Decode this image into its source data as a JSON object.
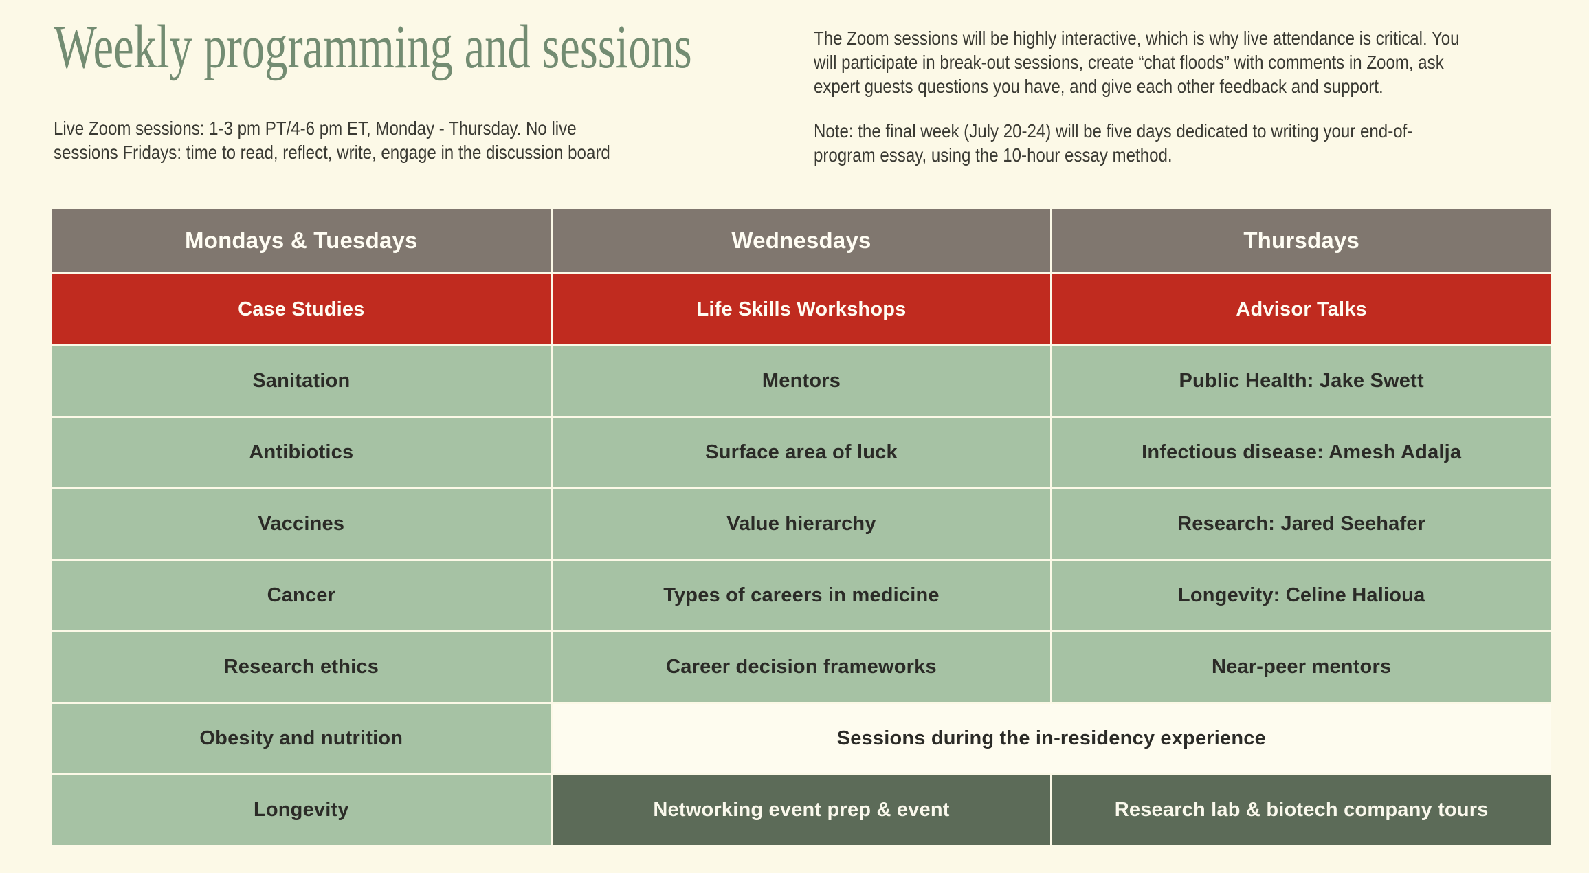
{
  "header": {
    "title": "Weekly programming and sessions",
    "left_paragraph": "Live Zoom sessions: 1-3 pm PT/4-6 pm ET, Monday - Thursday. No live\nsessions Fridays: time to read, reflect, write, engage in the discussion board",
    "right_paragraph_1": "The Zoom sessions will be highly interactive, which is why live attendance is critical. You\nwill participate in break-out sessions, create “chat floods” with comments in Zoom, ask\nexpert guests questions you have, and give each other feedback and support.",
    "right_paragraph_2": "Note: the final week (July 20-24) will be five days dedicated to writing your end-of-\nprogram essay, using the 10-hour essay method."
  },
  "colors": {
    "page_background": "#FCF9E7",
    "title_green": "#738C72",
    "header_row_gray": "#80776F",
    "category_row_red": "#C02B1F",
    "topic_cell_green": "#A6C2A4",
    "residency_row_dark_green": "#5C6B58",
    "table_light_text": "#FFFDF3",
    "table_dark_text": "#2B2B27"
  },
  "table": {
    "header_row": [
      "Mondays & Tuesdays",
      "Wednesdays",
      "Thursdays"
    ],
    "category_row": [
      "Case Studies",
      "Life Skills Workshops",
      "Advisor Talks"
    ],
    "topic_rows": [
      [
        "Sanitation",
        "Mentors",
        "Public Health: Jake Swett"
      ],
      [
        "Antibiotics",
        "Surface area of luck",
        "Infectious disease: Amesh Adalja"
      ],
      [
        "Vaccines",
        "Value hierarchy",
        "Research: Jared Seehafer"
      ],
      [
        "Cancer",
        "Types of careers in medicine",
        "Longevity: Celine Halioua"
      ],
      [
        "Research ethics",
        "Career decision frameworks",
        "Near-peer mentors"
      ]
    ],
    "in_residency_row": {
      "monday_topic": "Obesity and nutrition",
      "note": "Sessions during the in-residency experience"
    },
    "final_row": {
      "monday_topic": "Longevity",
      "wednesday_event": "Networking event prep & event",
      "thursday_event": "Research lab & biotech company tours"
    }
  }
}
